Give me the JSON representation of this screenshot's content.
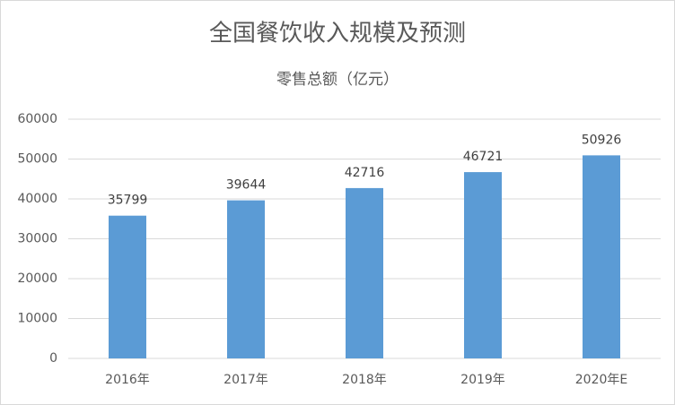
{
  "chart_data": {
    "type": "bar",
    "title": "全国餐饮收入规模及预测",
    "subtitle": "零售总额（亿元）",
    "categories": [
      "2016年",
      "2017年",
      "2018年",
      "2019年",
      "2020年E"
    ],
    "values": [
      35799,
      39644,
      42716,
      46721,
      50926
    ],
    "color": "#5b9bd5",
    "ylim": [
      0,
      60000
    ],
    "yticks": [
      0,
      10000,
      20000,
      30000,
      40000,
      50000,
      60000
    ],
    "grid": true
  }
}
